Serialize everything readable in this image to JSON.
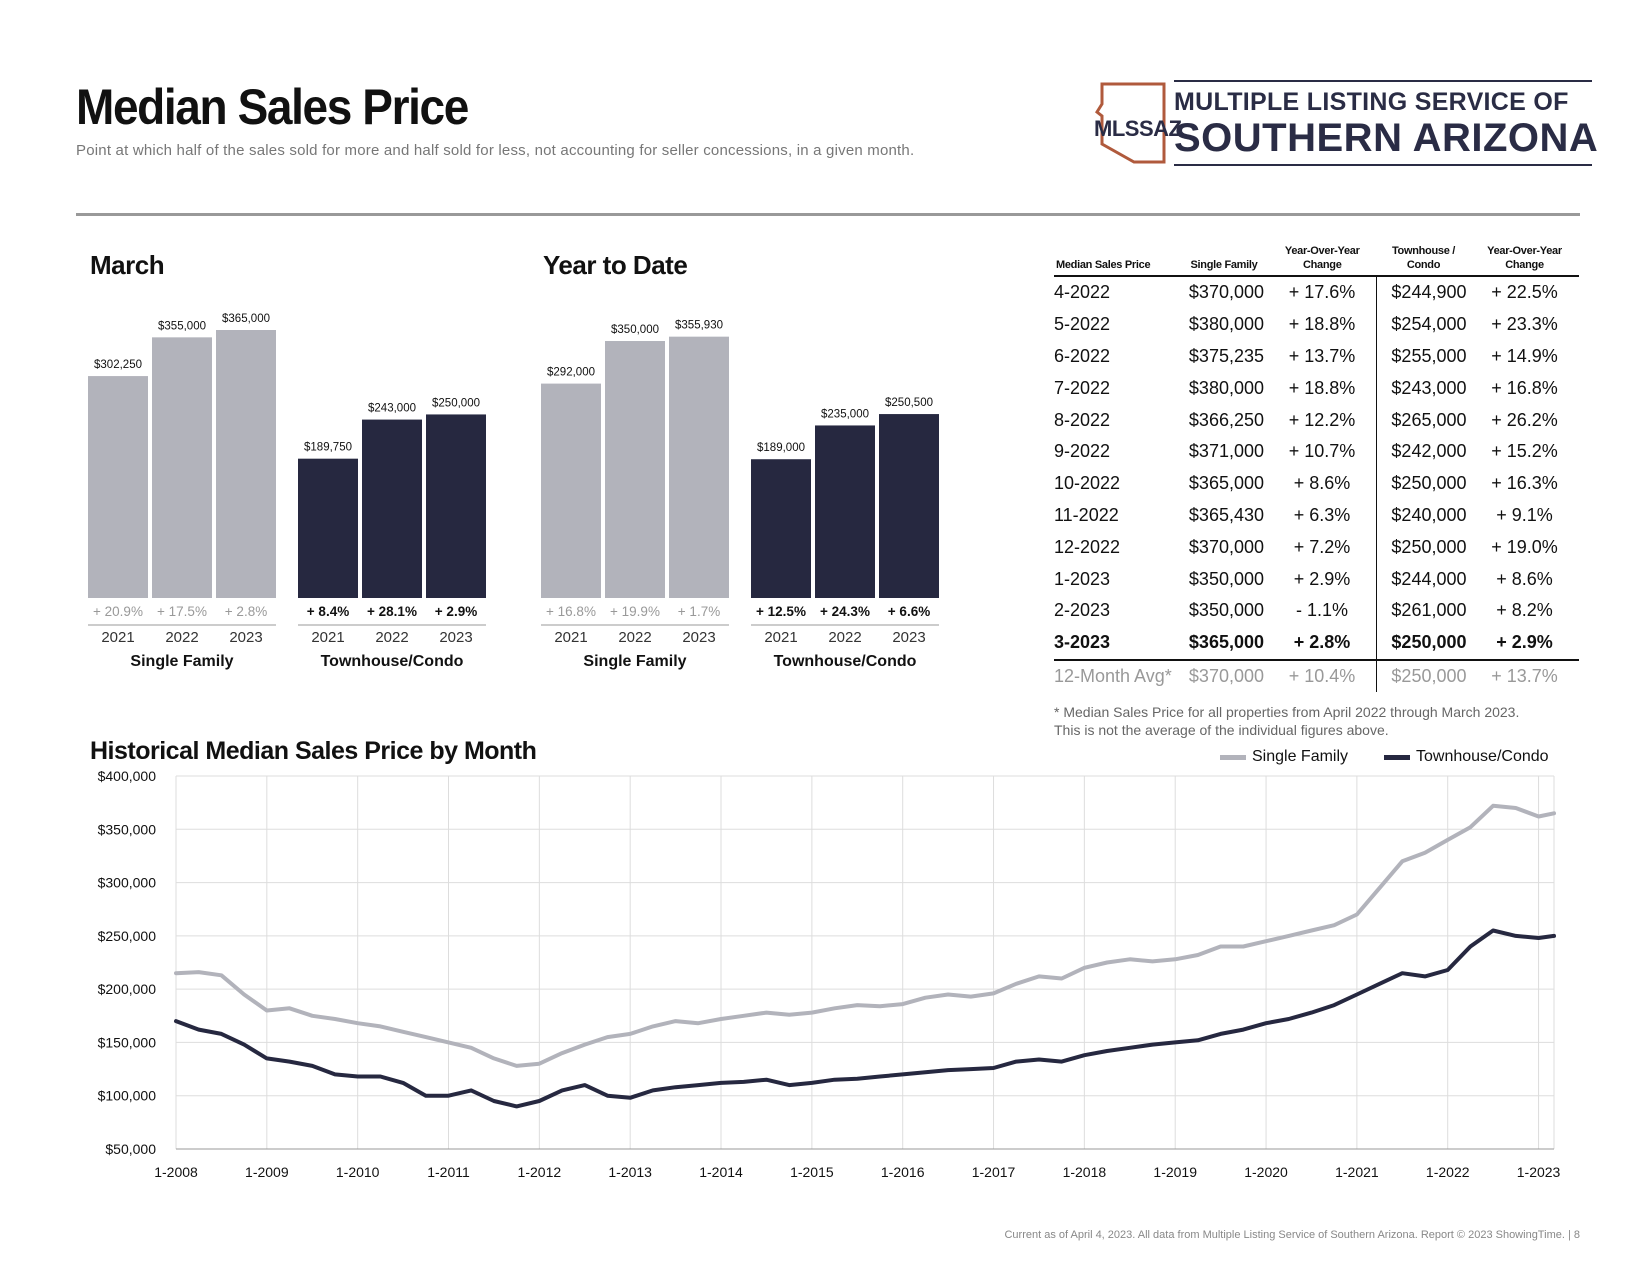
{
  "header": {
    "title": "Median Sales Price",
    "subtitle": "Point at which half of the sales sold for more and half sold for less, not accounting for seller concessions, in a given month.",
    "logo_mark": "MLSSAZ",
    "logo_top": "MULTIPLE LISTING SERVICE OF",
    "logo_bottom": "SOUTHERN ARIZONA"
  },
  "colors": {
    "single_family": "#b2b3bb",
    "townhouse": "#262840",
    "light_text": "#999999",
    "grid": "#dddddd"
  },
  "chart_data": [
    {
      "id": "march",
      "type": "bar",
      "title": "March",
      "groups": [
        {
          "name": "Single Family",
          "years": [
            "2021",
            "2022",
            "2023"
          ],
          "values": [
            302250,
            355000,
            365000
          ],
          "labels": [
            "$302,250",
            "$355,000",
            "$365,000"
          ],
          "changes": [
            "+ 20.9%",
            "+ 17.5%",
            "+ 2.8%"
          ]
        },
        {
          "name": "Townhouse/Condo",
          "years": [
            "2021",
            "2022",
            "2023"
          ],
          "values": [
            189750,
            243000,
            250000
          ],
          "labels": [
            "$189,750",
            "$243,000",
            "$250,000"
          ],
          "changes": [
            "+ 8.4%",
            "+ 28.1%",
            "+ 2.9%"
          ]
        }
      ]
    },
    {
      "id": "ytd",
      "type": "bar",
      "title": "Year to Date",
      "groups": [
        {
          "name": "Single Family",
          "years": [
            "2021",
            "2022",
            "2023"
          ],
          "values": [
            292000,
            350000,
            355930
          ],
          "labels": [
            "$292,000",
            "$350,000",
            "$355,930"
          ],
          "changes": [
            "+ 16.8%",
            "+ 19.9%",
            "+ 1.7%"
          ]
        },
        {
          "name": "Townhouse/Condo",
          "years": [
            "2021",
            "2022",
            "2023"
          ],
          "values": [
            189000,
            235000,
            250500
          ],
          "labels": [
            "$189,000",
            "$235,000",
            "$250,500"
          ],
          "changes": [
            "+ 12.5%",
            "+ 24.3%",
            "+ 6.6%"
          ]
        }
      ]
    },
    {
      "id": "historical",
      "type": "line",
      "title": "Historical Median Sales Price by Month",
      "ylim": [
        50000,
        400000
      ],
      "y_ticks": [
        50000,
        100000,
        150000,
        200000,
        250000,
        300000,
        350000,
        400000
      ],
      "y_tick_labels": [
        "$50,000",
        "$100,000",
        "$150,000",
        "$200,000",
        "$250,000",
        "$300,000",
        "$350,000",
        "$400,000"
      ],
      "x_tick_labels": [
        "1-2008",
        "1-2009",
        "1-2010",
        "1-2011",
        "1-2012",
        "1-2013",
        "1-2014",
        "1-2015",
        "1-2016",
        "1-2017",
        "1-2018",
        "1-2019",
        "1-2020",
        "1-2021",
        "1-2022",
        "1-2023"
      ],
      "x_start": "1-2008",
      "x_end": "3-2023",
      "series": [
        {
          "name": "Single Family",
          "x_years": [
            2008.0,
            2008.25,
            2008.5,
            2008.75,
            2009.0,
            2009.25,
            2009.5,
            2009.75,
            2010.0,
            2010.25,
            2010.5,
            2010.75,
            2011.0,
            2011.25,
            2011.5,
            2011.75,
            2012.0,
            2012.25,
            2012.5,
            2012.75,
            2013.0,
            2013.25,
            2013.5,
            2013.75,
            2014.0,
            2014.25,
            2014.5,
            2014.75,
            2015.0,
            2015.25,
            2015.5,
            2015.75,
            2016.0,
            2016.25,
            2016.5,
            2016.75,
            2017.0,
            2017.25,
            2017.5,
            2017.75,
            2018.0,
            2018.25,
            2018.5,
            2018.75,
            2019.0,
            2019.25,
            2019.5,
            2019.75,
            2020.0,
            2020.25,
            2020.5,
            2020.75,
            2021.0,
            2021.25,
            2021.5,
            2021.75,
            2022.0,
            2022.25,
            2022.5,
            2022.75,
            2023.0,
            2023.17
          ],
          "values": [
            215000,
            216000,
            213000,
            195000,
            180000,
            182000,
            175000,
            172000,
            168000,
            165000,
            160000,
            155000,
            150000,
            145000,
            135000,
            128000,
            130000,
            140000,
            148000,
            155000,
            158000,
            165000,
            170000,
            168000,
            172000,
            175000,
            178000,
            176000,
            178000,
            182000,
            185000,
            184000,
            186000,
            192000,
            195000,
            193000,
            196000,
            205000,
            212000,
            210000,
            220000,
            225000,
            228000,
            226000,
            228000,
            232000,
            240000,
            240000,
            245000,
            250000,
            255000,
            260000,
            270000,
            295000,
            320000,
            328000,
            340000,
            352000,
            372000,
            370000,
            362000,
            365000
          ]
        },
        {
          "name": "Townhouse/Condo",
          "x_years": [
            2008.0,
            2008.25,
            2008.5,
            2008.75,
            2009.0,
            2009.25,
            2009.5,
            2009.75,
            2010.0,
            2010.25,
            2010.5,
            2010.75,
            2011.0,
            2011.25,
            2011.5,
            2011.75,
            2012.0,
            2012.25,
            2012.5,
            2012.75,
            2013.0,
            2013.25,
            2013.5,
            2013.75,
            2014.0,
            2014.25,
            2014.5,
            2014.75,
            2015.0,
            2015.25,
            2015.5,
            2015.75,
            2016.0,
            2016.25,
            2016.5,
            2016.75,
            2017.0,
            2017.25,
            2017.5,
            2017.75,
            2018.0,
            2018.25,
            2018.5,
            2018.75,
            2019.0,
            2019.25,
            2019.5,
            2019.75,
            2020.0,
            2020.25,
            2020.5,
            2020.75,
            2021.0,
            2021.25,
            2021.5,
            2021.75,
            2022.0,
            2022.25,
            2022.5,
            2022.75,
            2023.0,
            2023.17
          ],
          "values": [
            170000,
            162000,
            158000,
            148000,
            135000,
            132000,
            128000,
            120000,
            118000,
            118000,
            112000,
            100000,
            100000,
            105000,
            95000,
            90000,
            95000,
            105000,
            110000,
            100000,
            98000,
            105000,
            108000,
            110000,
            112000,
            113000,
            115000,
            110000,
            112000,
            115000,
            116000,
            118000,
            120000,
            122000,
            124000,
            125000,
            126000,
            132000,
            134000,
            132000,
            138000,
            142000,
            145000,
            148000,
            150000,
            152000,
            158000,
            162000,
            168000,
            172000,
            178000,
            185000,
            195000,
            205000,
            215000,
            212000,
            218000,
            240000,
            255000,
            250000,
            248000,
            250000
          ]
        }
      ]
    }
  ],
  "table": {
    "headers": [
      "Median Sales Price",
      "Single Family",
      "Year-Over-Year Change",
      "Townhouse / Condo",
      "Year-Over-Year Change"
    ],
    "rows": [
      [
        "4-2022",
        "$370,000",
        "+ 17.6%",
        "$244,900",
        "+ 22.5%"
      ],
      [
        "5-2022",
        "$380,000",
        "+ 18.8%",
        "$254,000",
        "+ 23.3%"
      ],
      [
        "6-2022",
        "$375,235",
        "+ 13.7%",
        "$255,000",
        "+ 14.9%"
      ],
      [
        "7-2022",
        "$380,000",
        "+ 18.8%",
        "$243,000",
        "+ 16.8%"
      ],
      [
        "8-2022",
        "$366,250",
        "+ 12.2%",
        "$265,000",
        "+ 26.2%"
      ],
      [
        "9-2022",
        "$371,000",
        "+ 10.7%",
        "$242,000",
        "+ 15.2%"
      ],
      [
        "10-2022",
        "$365,000",
        "+ 8.6%",
        "$250,000",
        "+ 16.3%"
      ],
      [
        "11-2022",
        "$365,430",
        "+ 6.3%",
        "$240,000",
        "+ 9.1%"
      ],
      [
        "12-2022",
        "$370,000",
        "+ 7.2%",
        "$250,000",
        "+ 19.0%"
      ],
      [
        "1-2023",
        "$350,000",
        "+ 2.9%",
        "$244,000",
        "+ 8.6%"
      ],
      [
        "2-2023",
        "$350,000",
        "- 1.1%",
        "$261,000",
        "+ 8.2%"
      ],
      [
        "3-2023",
        "$365,000",
        "+ 2.8%",
        "$250,000",
        "+ 2.9%"
      ]
    ],
    "avg_row": [
      "12-Month Avg*",
      "$370,000",
      "+ 10.4%",
      "$250,000",
      "+ 13.7%"
    ],
    "footnote_1": "* Median Sales Price for all properties from April 2022 through March 2023.",
    "footnote_2": "This is not the average of the individual figures above."
  },
  "legend": {
    "single_family": "Single Family",
    "townhouse": "Townhouse/Condo"
  },
  "footer": "Current as of April 4, 2023. All data from Multiple Listing Service of Southern Arizona. Report © 2023 ShowingTime. | 8"
}
